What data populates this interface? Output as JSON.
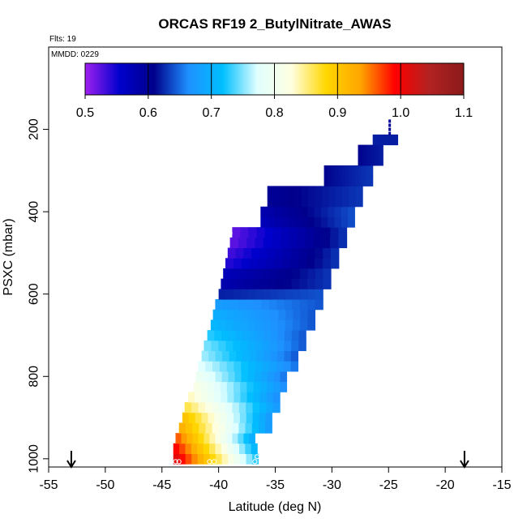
{
  "chart_data": {
    "type": "heatmap",
    "title": "ORCAS RF19 2_ButylNitrate_AWAS",
    "subtitle_left": "Flts: 19",
    "annotation": "MMDD: 0229",
    "xlabel": "Latitude (deg N)",
    "ylabel": "PSXC (mbar)",
    "xlim": [
      -55,
      -15
    ],
    "ylim": [
      1020,
      0
    ],
    "x_ticks": [
      -55,
      -50,
      -45,
      -40,
      -35,
      -30,
      -25,
      -20,
      -15
    ],
    "y_ticks": [
      200,
      400,
      600,
      800,
      1000
    ],
    "colorbar": {
      "min": 0.5,
      "max": 1.1,
      "ticks": [
        "0.5",
        "0.6",
        "0.7",
        "0.8",
        "0.9",
        "1.0",
        "1.1"
      ],
      "colors": [
        "#a020f0",
        "#0000cd",
        "#00008b",
        "#1e90ff",
        "#00bfff",
        "#e0ffff",
        "#ffffe0",
        "#ffd700",
        "#ffa500",
        "#ff0000",
        "#b22222",
        "#8b1a1a"
      ]
    },
    "arrows_at_latitude": [
      -53,
      -18.3
    ],
    "rows": [
      {
        "p": 1000,
        "x0": -44.0,
        "x1": -36.5,
        "v0": 1.02,
        "v1": 0.72
      },
      {
        "p": 975,
        "x0": -44.0,
        "x1": -36.6,
        "v0": 1.0,
        "v1": 0.7
      },
      {
        "p": 950,
        "x0": -43.8,
        "x1": -36.8,
        "v0": 0.97,
        "v1": 0.69
      },
      {
        "p": 925,
        "x0": -43.5,
        "x1": -35.3,
        "v0": 0.93,
        "v1": 0.67
      },
      {
        "p": 900,
        "x0": -43.2,
        "x1": -35.3,
        "v0": 0.91,
        "v1": 0.67
      },
      {
        "p": 875,
        "x0": -43.0,
        "x1": -34.6,
        "v0": 0.87,
        "v1": 0.67
      },
      {
        "p": 850,
        "x0": -42.7,
        "x1": -34.6,
        "v0": 0.84,
        "v1": 0.66
      },
      {
        "p": 825,
        "x0": -42.2,
        "x1": -34.0,
        "v0": 0.82,
        "v1": 0.66
      },
      {
        "p": 800,
        "x0": -42.0,
        "x1": -34.0,
        "v0": 0.8,
        "v1": 0.65
      },
      {
        "p": 775,
        "x0": -41.8,
        "x1": -33.0,
        "v0": 0.78,
        "v1": 0.65
      },
      {
        "p": 750,
        "x0": -41.5,
        "x1": -33.0,
        "v0": 0.76,
        "v1": 0.64
      },
      {
        "p": 725,
        "x0": -41.3,
        "x1": -32.3,
        "v0": 0.75,
        "v1": 0.64
      },
      {
        "p": 700,
        "x0": -41.0,
        "x1": -32.3,
        "v0": 0.73,
        "v1": 0.64
      },
      {
        "p": 675,
        "x0": -40.7,
        "x1": -31.5,
        "v0": 0.71,
        "v1": 0.64
      },
      {
        "p": 650,
        "x0": -40.5,
        "x1": -31.5,
        "v0": 0.7,
        "v1": 0.64
      },
      {
        "p": 625,
        "x0": -40.3,
        "x1": -30.8,
        "v0": 0.68,
        "v1": 0.64
      },
      {
        "p": 600,
        "x0": -40.0,
        "x1": -30.8,
        "v0": 0.62,
        "v1": 0.64
      },
      {
        "p": 575,
        "x0": -39.8,
        "x1": -30.1,
        "v0": 0.58,
        "v1": 0.63
      },
      {
        "p": 550,
        "x0": -39.6,
        "x1": -30.1,
        "v0": 0.57,
        "v1": 0.63
      },
      {
        "p": 525,
        "x0": -39.4,
        "x1": -29.4,
        "v0": 0.54,
        "v1": 0.63
      },
      {
        "p": 500,
        "x0": -39.2,
        "x1": -29.4,
        "v0": 0.53,
        "v1": 0.63
      },
      {
        "p": 475,
        "x0": -39.0,
        "x1": -28.7,
        "v0": 0.52,
        "v1": 0.63
      },
      {
        "p": 450,
        "x0": -38.8,
        "x1": -28.7,
        "v0": 0.52,
        "v1": 0.63
      },
      {
        "p": 425,
        "x0": -36.3,
        "x1": -28.0,
        "v0": 0.57,
        "v1": 0.64
      },
      {
        "p": 400,
        "x0": -36.3,
        "x1": -28.0,
        "v0": 0.58,
        "v1": 0.64
      },
      {
        "p": 375,
        "x0": -35.7,
        "x1": -27.3,
        "v0": 0.6,
        "v1": 0.63
      },
      {
        "p": 350,
        "x0": -35.7,
        "x1": -27.3,
        "v0": 0.6,
        "v1": 0.63
      },
      {
        "p": 325,
        "x0": -30.7,
        "x1": -26.4,
        "v0": 0.61,
        "v1": 0.63
      },
      {
        "p": 300,
        "x0": -30.7,
        "x1": -26.4,
        "v0": 0.61,
        "v1": 0.63
      },
      {
        "p": 275,
        "x0": -27.7,
        "x1": -25.5,
        "v0": 0.61,
        "v1": 0.62
      },
      {
        "p": 250,
        "x0": -27.7,
        "x1": -25.5,
        "v0": 0.61,
        "v1": 0.62
      },
      {
        "p": 225,
        "x0": -26.4,
        "x1": -24.2,
        "v0": 0.62,
        "v1": 0.62
      }
    ],
    "isolated_points": [
      {
        "x": -24.9,
        "p": 180,
        "v": 0.6
      },
      {
        "x": -24.9,
        "p": 190,
        "v": 0.6
      },
      {
        "x": -24.9,
        "p": 200,
        "v": 0.6
      },
      {
        "x": -24.9,
        "p": 210,
        "v": 0.6
      }
    ],
    "sample_markers": [
      {
        "x": -39.0,
        "p": 452
      },
      {
        "x": -43.8,
        "p": 1007
      },
      {
        "x": -43.5,
        "p": 1007
      },
      {
        "x": -40.8,
        "p": 1007
      },
      {
        "x": -40.4,
        "p": 1007
      },
      {
        "x": -36.8,
        "p": 1007
      },
      {
        "x": -36.6,
        "p": 995
      }
    ]
  }
}
